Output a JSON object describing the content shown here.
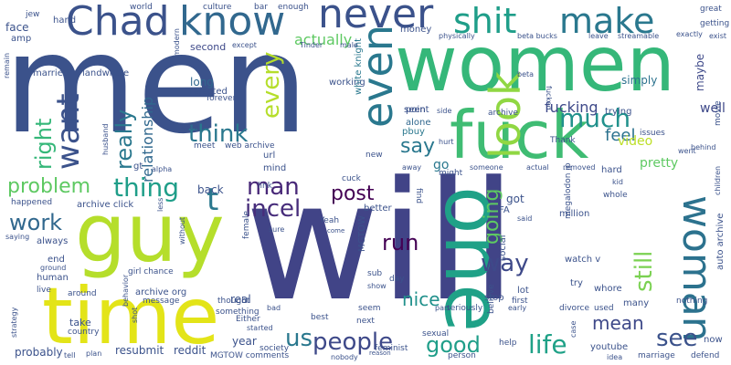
{
  "palette": {
    "deep_purple": "#440154",
    "indigo": "#3b528b",
    "blue": "#31688e",
    "teal": "#21918c",
    "green": "#35b779",
    "lime": "#90d743",
    "yellow": "#e3e418"
  },
  "words": [
    {
      "text": "men",
      "color": "#3b528b"
    },
    {
      "text": "will",
      "color": "#414487"
    },
    {
      "text": "women",
      "color": "#35b779"
    },
    {
      "text": "guy",
      "color": "#b5de2b"
    },
    {
      "text": "time",
      "color": "#e3e418"
    },
    {
      "text": "fuck",
      "color": "#3fbc73"
    },
    {
      "text": "one",
      "color": "#1fa187"
    },
    {
      "text": "Chad",
      "color": "#3b528b"
    },
    {
      "text": "know",
      "color": "#31688e"
    },
    {
      "text": "never",
      "color": "#3b528b"
    },
    {
      "text": "shit",
      "color": "#1f9e89"
    },
    {
      "text": "make",
      "color": "#2a788e"
    },
    {
      "text": "look",
      "color": "#90d743"
    },
    {
      "text": "even",
      "color": "#2a788e"
    },
    {
      "text": "woman",
      "color": "#2c728e"
    },
    {
      "text": "want",
      "color": "#3b528b"
    },
    {
      "text": "thing",
      "color": "#1f9e89"
    },
    {
      "text": "think",
      "color": "#2a788e"
    },
    {
      "text": "much",
      "color": "#21918c"
    },
    {
      "text": "really",
      "color": "#2a788e"
    },
    {
      "text": "problem",
      "color": "#5ec962"
    },
    {
      "text": "every",
      "color": "#b5de2b"
    },
    {
      "text": "work",
      "color": "#31688e"
    },
    {
      "text": "right",
      "color": "#35b779"
    },
    {
      "text": "man",
      "color": "#482878"
    },
    {
      "text": "incel",
      "color": "#472d7b"
    },
    {
      "text": "post",
      "color": "#440154"
    },
    {
      "text": "say",
      "color": "#2a788e"
    },
    {
      "text": "way",
      "color": "#3e4989"
    },
    {
      "text": "run",
      "color": "#440154"
    },
    {
      "text": "still",
      "color": "#7ad151"
    },
    {
      "text": "going",
      "color": "#5ec962"
    },
    {
      "text": "people",
      "color": "#3e4989"
    },
    {
      "text": "us",
      "color": "#2a788e"
    },
    {
      "text": "good",
      "color": "#1f9e89"
    },
    {
      "text": "life",
      "color": "#1fa187"
    },
    {
      "text": "see",
      "color": "#3b528b"
    },
    {
      "text": "nice",
      "color": "#21918c"
    },
    {
      "text": "mean",
      "color": "#3e4989"
    },
    {
      "text": "actually",
      "color": "#5ec962"
    },
    {
      "text": "relationship",
      "color": "#31688e"
    },
    {
      "text": "t",
      "color": "#2a788e"
    },
    {
      "text": "fucking",
      "color": "#3e4989"
    },
    {
      "text": "feel",
      "color": "#2c728e"
    },
    {
      "text": "video",
      "color": "#bddf26"
    },
    {
      "text": "pretty",
      "color": "#5ec962"
    },
    {
      "text": "well",
      "color": "#3e4989"
    },
    {
      "text": "maybe",
      "color": "#3e4989"
    },
    {
      "text": "simply",
      "color": "#2c728e"
    },
    {
      "text": "trying",
      "color": "#3b528b"
    },
    {
      "text": "long",
      "color": "#31688e"
    },
    {
      "text": "rejected",
      "color": "#3b528b"
    },
    {
      "text": "working",
      "color": "#3b528b"
    },
    {
      "text": "alone",
      "color": "#31688e"
    },
    {
      "text": "pbuy",
      "color": "#2a788e"
    },
    {
      "text": "seen",
      "color": "#3b528b"
    },
    {
      "text": "point",
      "color": "#3b528b"
    },
    {
      "text": "go",
      "color": "#2a788e"
    },
    {
      "text": "white knight",
      "color": "#2a788e"
    },
    {
      "text": "forever",
      "color": "#3b528b"
    },
    {
      "text": "second",
      "color": "#3e4989"
    },
    {
      "text": "landwhale",
      "color": "#3b528b"
    },
    {
      "text": "married",
      "color": "#3b528b"
    },
    {
      "text": "face",
      "color": "#3b528b"
    },
    {
      "text": "amp",
      "color": "#3b528b"
    },
    {
      "text": "hand",
      "color": "#3b528b"
    },
    {
      "text": "jew",
      "color": "#3b528b"
    },
    {
      "text": "remain",
      "color": "#3b528b"
    },
    {
      "text": "culture",
      "color": "#3b528b"
    },
    {
      "text": "bar",
      "color": "#3b528b"
    },
    {
      "text": "enough",
      "color": "#3b528b"
    },
    {
      "text": "world",
      "color": "#3b528b"
    },
    {
      "text": "modern",
      "color": "#3b528b"
    },
    {
      "text": "except",
      "color": "#3b528b"
    },
    {
      "text": "Tinder",
      "color": "#3b528b"
    },
    {
      "text": "male",
      "color": "#3b528b"
    },
    {
      "text": "money",
      "color": "#3b528b"
    },
    {
      "text": "physically",
      "color": "#3b528b"
    },
    {
      "text": "beta bucks",
      "color": "#3b528b"
    },
    {
      "text": "leave",
      "color": "#3b528b"
    },
    {
      "text": "streamable",
      "color": "#3b528b"
    },
    {
      "text": "great",
      "color": "#3b528b"
    },
    {
      "text": "getting",
      "color": "#3b528b"
    },
    {
      "text": "exactly",
      "color": "#3b528b"
    },
    {
      "text": "exist",
      "color": "#3b528b"
    },
    {
      "text": "beta",
      "color": "#3b528b"
    },
    {
      "text": "fucked",
      "color": "#3b528b"
    },
    {
      "text": "archive",
      "color": "#3b528b"
    },
    {
      "text": "side",
      "color": "#3b528b"
    },
    {
      "text": "hurt",
      "color": "#3b528b"
    },
    {
      "text": "Thank",
      "color": "#3b528b"
    },
    {
      "text": "issues",
      "color": "#3b528b"
    },
    {
      "text": "movie",
      "color": "#3b528b"
    },
    {
      "text": "went",
      "color": "#3b528b"
    },
    {
      "text": "behind",
      "color": "#3b528b"
    },
    {
      "text": "keep",
      "color": "#3b528b"
    },
    {
      "text": "husband",
      "color": "#3b528b"
    },
    {
      "text": "meet",
      "color": "#3b528b"
    },
    {
      "text": "web archive",
      "color": "#3b528b"
    },
    {
      "text": "url",
      "color": "#3b528b"
    },
    {
      "text": "mind",
      "color": "#3b528b"
    },
    {
      "text": "gt",
      "color": "#3b528b"
    },
    {
      "text": "alpha",
      "color": "#3b528b"
    },
    {
      "text": "new",
      "color": "#3b528b"
    },
    {
      "text": "cuck",
      "color": "#3b528b"
    },
    {
      "text": "away",
      "color": "#3b528b"
    },
    {
      "text": "might",
      "color": "#3b528b"
    },
    {
      "text": "someone",
      "color": "#3b528b"
    },
    {
      "text": "actual",
      "color": "#3b528b"
    },
    {
      "text": "removed",
      "color": "#3b528b"
    },
    {
      "text": "hard",
      "color": "#3b528b"
    },
    {
      "text": "kid",
      "color": "#3b528b"
    },
    {
      "text": "whole",
      "color": "#3b528b"
    },
    {
      "text": "children",
      "color": "#3b528b"
    },
    {
      "text": "back",
      "color": "#3b528b"
    },
    {
      "text": "link",
      "color": "#3b528b"
    },
    {
      "text": "find",
      "color": "#3b528b"
    },
    {
      "text": "got",
      "color": "#3b528b"
    },
    {
      "text": "FA",
      "color": "#3b528b"
    },
    {
      "text": "million",
      "color": "#3b528b"
    },
    {
      "text": "happened",
      "color": "#3b528b"
    },
    {
      "text": "archive click",
      "color": "#3b528b"
    },
    {
      "text": "less",
      "color": "#3b528b"
    },
    {
      "text": "better",
      "color": "#3b528b"
    },
    {
      "text": "said",
      "color": "#3b528b"
    },
    {
      "text": "megalodon jp",
      "color": "#3b528b"
    },
    {
      "text": "always",
      "color": "#3b528b"
    },
    {
      "text": "saying",
      "color": "#3b528b"
    },
    {
      "text": "end",
      "color": "#3b528b"
    },
    {
      "text": "ground",
      "color": "#3b528b"
    },
    {
      "text": "human",
      "color": "#3b528b"
    },
    {
      "text": "live",
      "color": "#3b528b"
    },
    {
      "text": "around",
      "color": "#3b528b"
    },
    {
      "text": "archive org",
      "color": "#3b528b"
    },
    {
      "text": "girl chance",
      "color": "#3b528b"
    },
    {
      "text": "without",
      "color": "#3b528b"
    },
    {
      "text": "female",
      "color": "#3b528b"
    },
    {
      "text": "sure",
      "color": "#3b528b"
    },
    {
      "text": "Yeah",
      "color": "#3b528b"
    },
    {
      "text": "come",
      "color": "#3b528b"
    },
    {
      "text": "MGTOW",
      "color": "#3b528b"
    },
    {
      "text": "day",
      "color": "#3b528b"
    },
    {
      "text": "show",
      "color": "#3b528b"
    },
    {
      "text": "sub",
      "color": "#3b528b"
    },
    {
      "text": "social",
      "color": "#3b528b"
    },
    {
      "text": "watch v",
      "color": "#3b528b"
    },
    {
      "text": "many",
      "color": "#3b528b"
    },
    {
      "text": "whore",
      "color": "#3b528b"
    },
    {
      "text": "lot",
      "color": "#3b528b"
    },
    {
      "text": "stop",
      "color": "#3b528b"
    },
    {
      "text": "try",
      "color": "#3b528b"
    },
    {
      "text": "part",
      "color": "#3b528b"
    },
    {
      "text": "first",
      "color": "#3b528b"
    },
    {
      "text": "early",
      "color": "#3b528b"
    },
    {
      "text": "divorce",
      "color": "#3b528b"
    },
    {
      "text": "used",
      "color": "#3b528b"
    },
    {
      "text": "nothing",
      "color": "#3b528b"
    },
    {
      "text": "auto archive",
      "color": "#3b528b"
    },
    {
      "text": "strategy",
      "color": "#3b528b"
    },
    {
      "text": "shot",
      "color": "#3b528b"
    },
    {
      "text": "message",
      "color": "#3b528b"
    },
    {
      "text": "thought",
      "color": "#3b528b"
    },
    {
      "text": "something",
      "color": "#3b528b"
    },
    {
      "text": "real",
      "color": "#3b528b"
    },
    {
      "text": "bad",
      "color": "#3b528b"
    },
    {
      "text": "best",
      "color": "#3b528b"
    },
    {
      "text": "seem",
      "color": "#3b528b"
    },
    {
      "text": "next",
      "color": "#3b528b"
    },
    {
      "text": "seriously",
      "color": "#3b528b"
    },
    {
      "text": "sexual",
      "color": "#3b528b"
    },
    {
      "text": "believe",
      "color": "#3b528b"
    },
    {
      "text": "take",
      "color": "#3b528b"
    },
    {
      "text": "country",
      "color": "#3b528b"
    },
    {
      "text": "behavior",
      "color": "#3b528b"
    },
    {
      "text": "Either",
      "color": "#3b528b"
    },
    {
      "text": "year",
      "color": "#3b528b"
    },
    {
      "text": "started",
      "color": "#3b528b"
    },
    {
      "text": "society",
      "color": "#3b528b"
    },
    {
      "text": "feminist",
      "color": "#3b528b"
    },
    {
      "text": "person",
      "color": "#3b528b"
    },
    {
      "text": "help",
      "color": "#3b528b"
    },
    {
      "text": "youtube",
      "color": "#3b528b"
    },
    {
      "text": "now",
      "color": "#3b528b"
    },
    {
      "text": "idea",
      "color": "#3b528b"
    },
    {
      "text": "marriage",
      "color": "#3b528b"
    },
    {
      "text": "defend",
      "color": "#3b528b"
    },
    {
      "text": "probably",
      "color": "#3b528b"
    },
    {
      "text": "tell",
      "color": "#3b528b"
    },
    {
      "text": "plan",
      "color": "#3b528b"
    },
    {
      "text": "resubmit",
      "color": "#3b528b"
    },
    {
      "text": "reddit",
      "color": "#3b528b"
    },
    {
      "text": "MGTOW comments",
      "color": "#3b528b"
    },
    {
      "text": "nobody",
      "color": "#3b528b"
    },
    {
      "text": "reason",
      "color": "#3b528b"
    },
    {
      "text": "case",
      "color": "#3b528b"
    }
  ]
}
